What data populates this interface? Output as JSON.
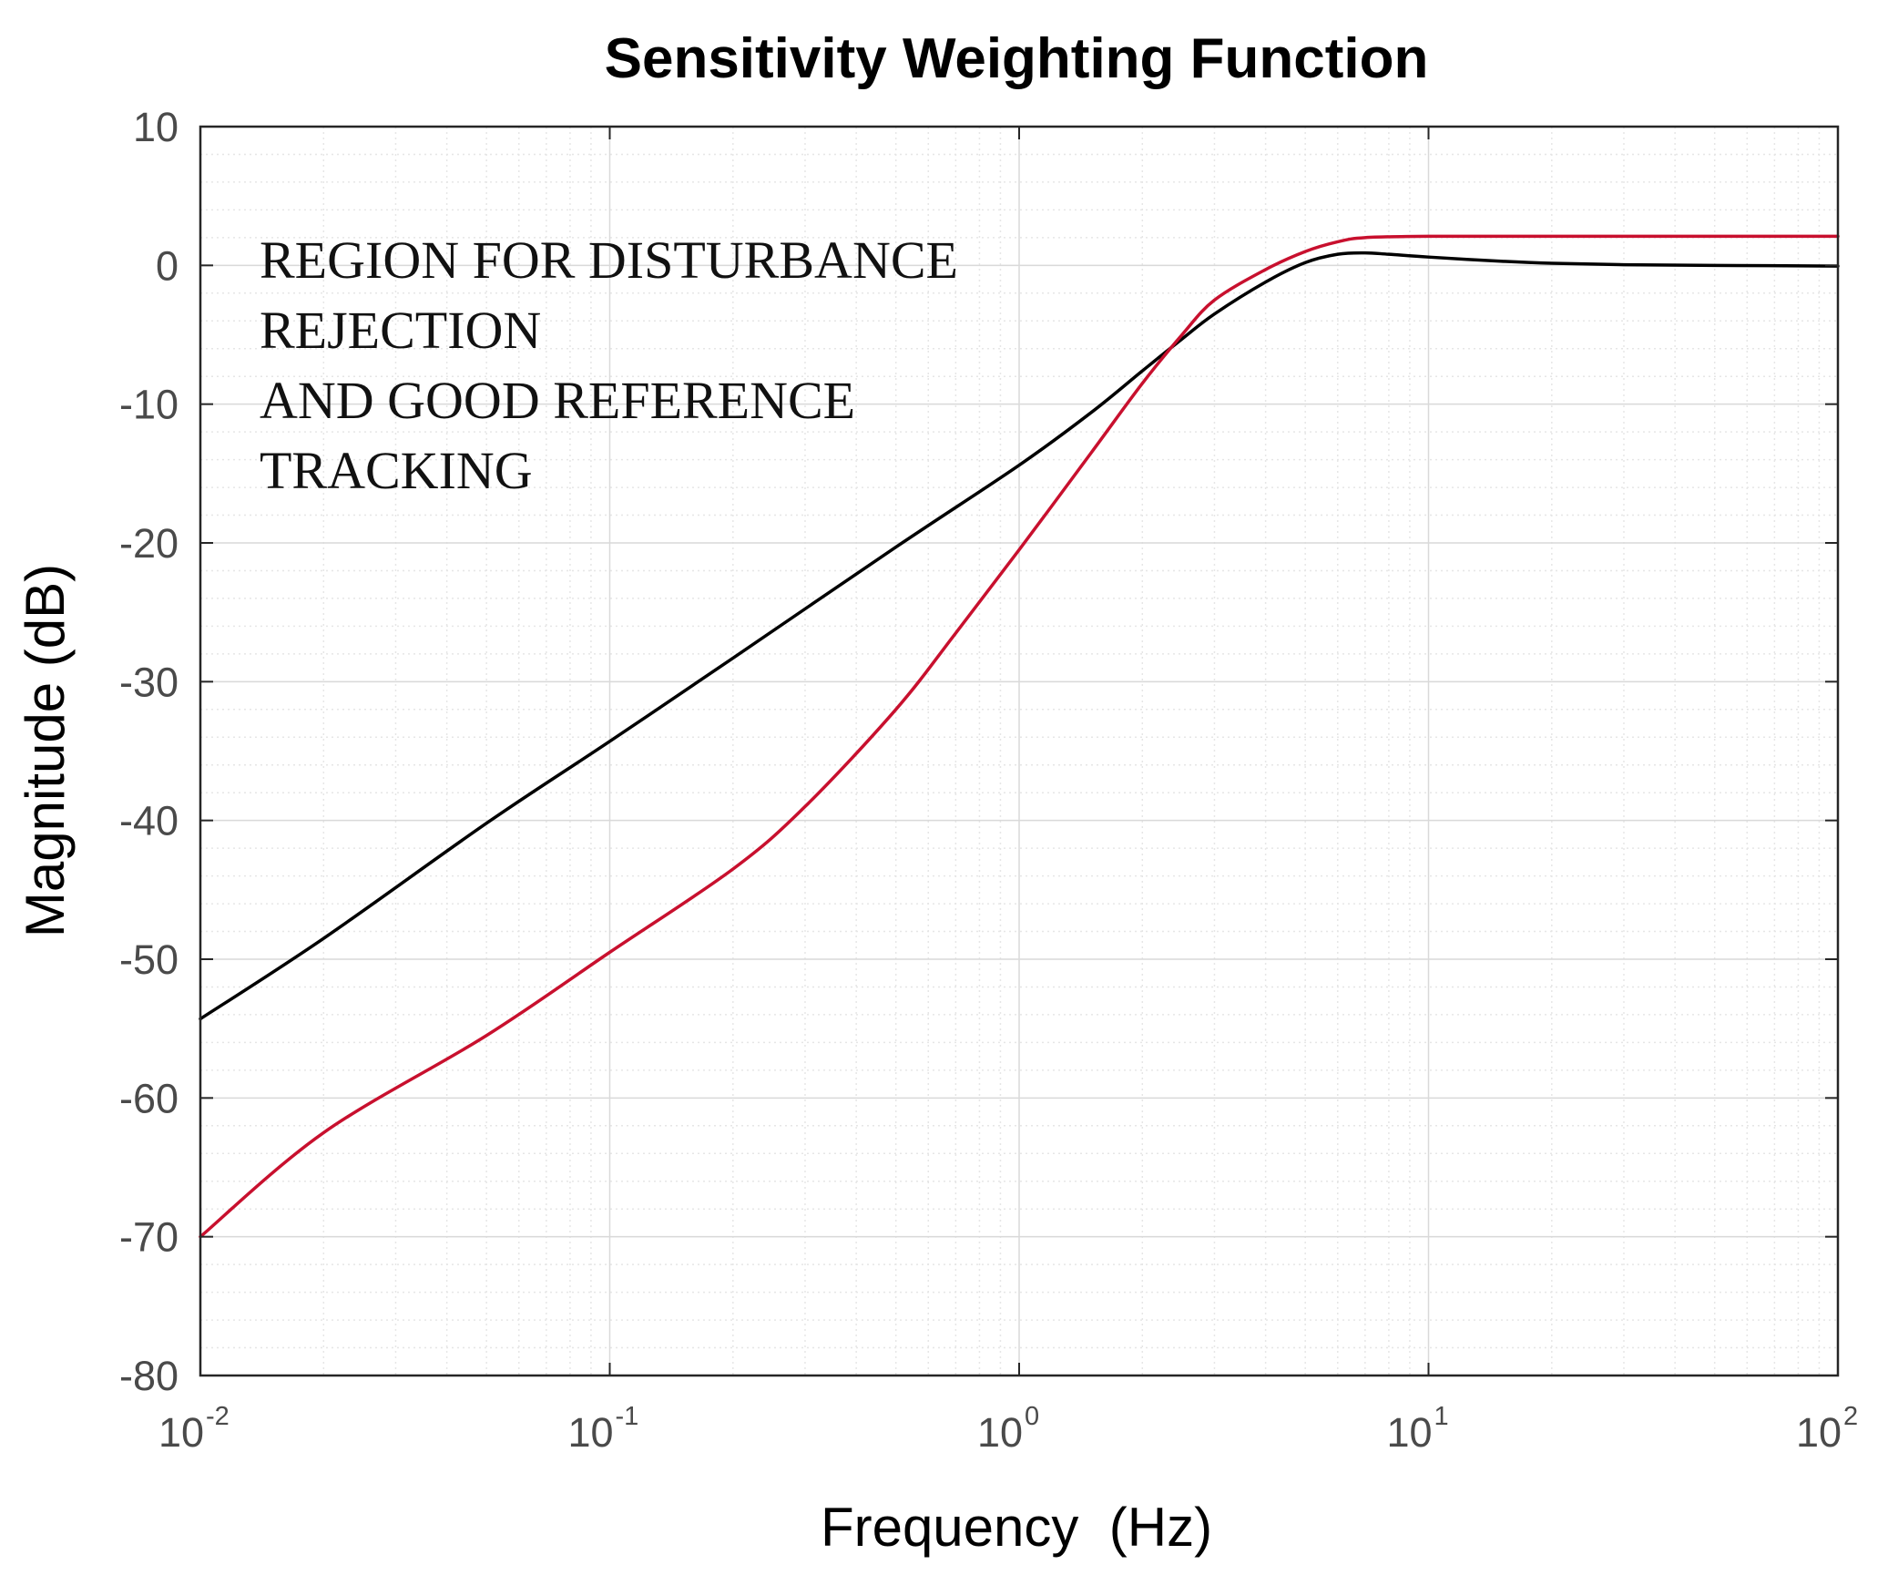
{
  "chart_data": {
    "type": "line",
    "title": "Sensitivity Weighting Function",
    "xlabel": "Frequency  (Hz)",
    "ylabel": "Magnitude (dB)",
    "xscale": "log",
    "xlim": [
      0.01,
      100
    ],
    "ylim": [
      -80,
      10
    ],
    "grid": true,
    "minor_grid": true,
    "x_ticks": [
      {
        "value": 0.01,
        "base": "10",
        "exp": "-2"
      },
      {
        "value": 0.1,
        "base": "10",
        "exp": "-1"
      },
      {
        "value": 1,
        "base": "10",
        "exp": "0"
      },
      {
        "value": 10,
        "base": "10",
        "exp": "1"
      },
      {
        "value": 100,
        "base": "10",
        "exp": "2"
      }
    ],
    "y_ticks": [
      {
        "value": 10,
        "label": "10"
      },
      {
        "value": 0,
        "label": "0"
      },
      {
        "value": -10,
        "label": "-10"
      },
      {
        "value": -20,
        "label": "-20"
      },
      {
        "value": -30,
        "label": "-30"
      },
      {
        "value": -40,
        "label": "-40"
      },
      {
        "value": -50,
        "label": "-50"
      },
      {
        "value": -60,
        "label": "-60"
      },
      {
        "value": -70,
        "label": "-70"
      },
      {
        "value": -80,
        "label": "-80"
      }
    ],
    "annotation": [
      "REGION FOR DISTURBANCE",
      "REJECTION",
      "AND GOOD REFERENCE",
      "TRACKING"
    ],
    "series": [
      {
        "name": "black-curve",
        "color": "#000000",
        "x": [
          0.01,
          0.02,
          0.05,
          0.1,
          0.2,
          0.5,
          1,
          1.5,
          2,
          2.5,
          3,
          4,
          5,
          6,
          7,
          8,
          10,
          15,
          20,
          30,
          50,
          100
        ],
        "y": [
          -54.3,
          -48.5,
          -40.2,
          -34.3,
          -28.3,
          -20.3,
          -14.4,
          -10.6,
          -7.6,
          -5.3,
          -3.5,
          -1.2,
          0.2,
          0.8,
          0.9,
          0.8,
          0.6,
          0.3,
          0.15,
          0.05,
          0.0,
          -0.05
        ]
      },
      {
        "name": "red-curve",
        "color": "#c8102e",
        "x": [
          0.01,
          0.02,
          0.05,
          0.1,
          0.2,
          0.3,
          0.5,
          0.7,
          1,
          1.5,
          2,
          2.5,
          3,
          4,
          5,
          6,
          7,
          10,
          20,
          50,
          100
        ],
        "y": [
          -70.0,
          -62.5,
          -55.5,
          -49.5,
          -43.5,
          -39.0,
          -32.0,
          -26.5,
          -20.5,
          -13.5,
          -8.5,
          -5.0,
          -2.5,
          -0.3,
          1.0,
          1.7,
          2.0,
          2.1,
          2.1,
          2.1,
          2.1
        ]
      }
    ]
  }
}
